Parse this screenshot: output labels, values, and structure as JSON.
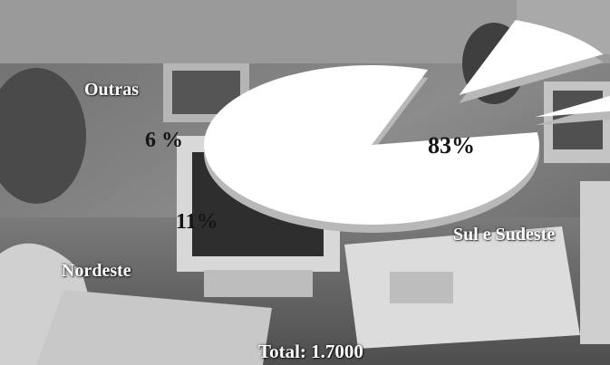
{
  "colors": {
    "slice_fill": "#ffffff",
    "slice_side": "#b8b8b8",
    "category_text": "#ffffff",
    "value_text": "#151515"
  },
  "chart_data": {
    "type": "pie",
    "style": "exploded 3d pie over grayscale office photo",
    "categories": [
      "Sul e Sudeste",
      "Nordeste",
      "Outras"
    ],
    "values": [
      83,
      11,
      6
    ],
    "value_labels": [
      "83%",
      "11%",
      "6 %"
    ],
    "total_label": "Total: 1.7000"
  }
}
